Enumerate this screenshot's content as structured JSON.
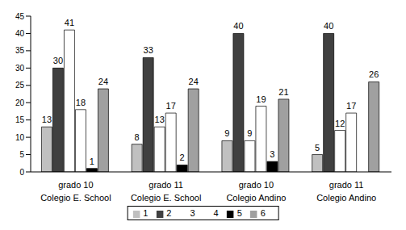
{
  "chart_data": {
    "type": "bar",
    "categories": [
      "grado 10\nColegio E. School",
      "grado 11\nColegio E. School",
      "grado 10\nColegio Andino",
      "grado 11\nColegio Andino"
    ],
    "series": [
      {
        "name": "1",
        "color": "#c0c0c0",
        "values": [
          13,
          8,
          9,
          5
        ]
      },
      {
        "name": "2",
        "color": "#404040",
        "values": [
          30,
          33,
          40,
          40
        ]
      },
      {
        "name": "3",
        "color": "#ffffff",
        "values": [
          41,
          13,
          9,
          12
        ]
      },
      {
        "name": "4",
        "color": "#ffffff",
        "values": [
          18,
          17,
          19,
          17
        ]
      },
      {
        "name": "5",
        "color": "#000000",
        "values": [
          1,
          2,
          3,
          0
        ]
      },
      {
        "name": "6",
        "color": "#a0a0a0",
        "values": [
          24,
          24,
          21,
          26
        ]
      }
    ],
    "ylim": [
      0,
      45
    ],
    "yticks": [
      0,
      5,
      10,
      15,
      20,
      25,
      30,
      35,
      40,
      45
    ],
    "grid": false,
    "data_labels": true,
    "legend": "bottom"
  }
}
